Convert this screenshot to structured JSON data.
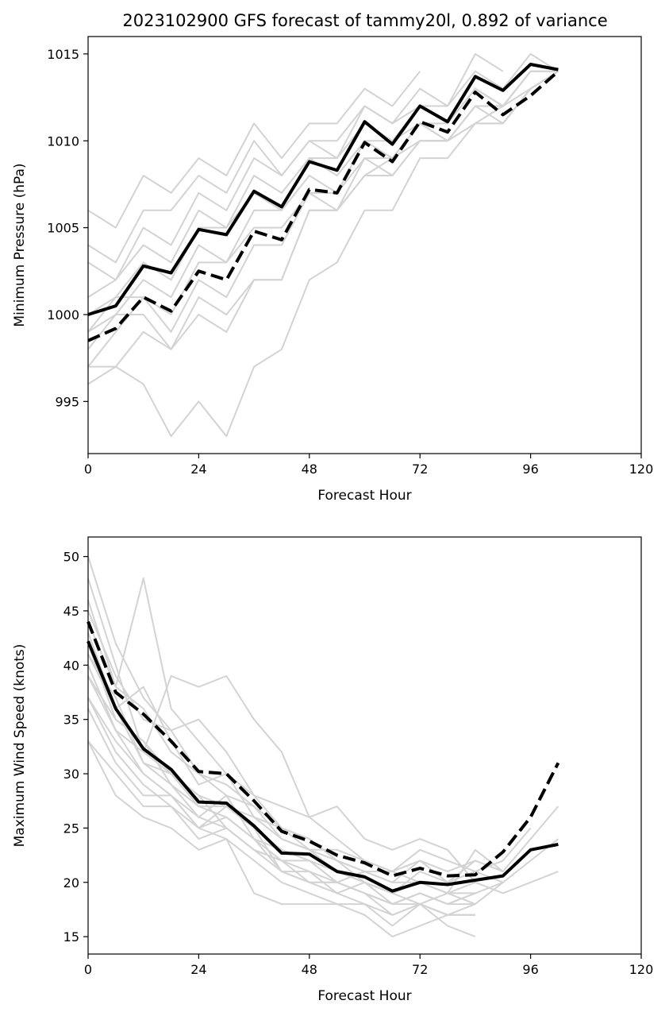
{
  "title": "2023102900 GFS forecast of tammy20l, 0.892 of variance",
  "chart_data": [
    {
      "type": "line",
      "xlabel": "Forecast Hour",
      "ylabel": "Minimum Pressure (hPa)",
      "xlim": [
        0,
        120
      ],
      "ylim": [
        992,
        1016
      ],
      "xticks": [
        0,
        24,
        48,
        72,
        96,
        120
      ],
      "yticks": [
        995,
        1000,
        1005,
        1010,
        1015
      ],
      "x": [
        0,
        6,
        12,
        18,
        24,
        30,
        36,
        42,
        48,
        54,
        60,
        66,
        72,
        78,
        84,
        90,
        96,
        102
      ],
      "series": [
        {
          "role": "mean",
          "style": "solid",
          "color": "#000000",
          "values": [
            1000.0,
            1000.5,
            1002.8,
            1002.4,
            1004.9,
            1004.6,
            1007.1,
            1006.2,
            1008.8,
            1008.3,
            1011.1,
            1009.8,
            1012.0,
            1011.1,
            1013.7,
            1012.9,
            1014.4,
            1014.1
          ]
        },
        {
          "role": "deterministic",
          "style": "dashed",
          "color": "#000000",
          "values": [
            998.5,
            999.2,
            1001.0,
            1000.2,
            1002.5,
            1002.0,
            1004.8,
            1004.3,
            1007.2,
            1007.0,
            1009.9,
            1008.8,
            1011.1,
            1010.5,
            1012.8,
            1011.5,
            1012.6,
            1014.0
          ]
        },
        {
          "role": "member",
          "values": [
            1006,
            1005,
            1008,
            1007,
            1009,
            1008,
            1011,
            1009,
            1011,
            1011,
            1013,
            1012,
            1014,
            null,
            null,
            null,
            null,
            null
          ]
        },
        {
          "role": "member",
          "values": [
            1004,
            1003,
            1006,
            1006,
            1008,
            1007,
            1010,
            1008,
            1010,
            1010,
            1012,
            1011,
            1013,
            1012,
            1015,
            1014,
            null,
            null
          ]
        },
        {
          "role": "member",
          "values": [
            1003,
            1002,
            1005,
            1004,
            1007,
            1006,
            1009,
            1008,
            1010,
            1009,
            1012,
            1011,
            1012,
            1012,
            1014,
            1013,
            1015,
            1014
          ]
        },
        {
          "role": "member",
          "values": [
            1001,
            1002,
            1004,
            1003,
            1006,
            1005,
            1008,
            1007,
            1009,
            1009,
            1011,
            1010,
            1012,
            1011,
            1013,
            1012,
            1014,
            null
          ]
        },
        {
          "role": "member",
          "values": [
            1000,
            1001,
            1003,
            1002,
            1005,
            1005,
            1007,
            1006,
            1009,
            1008,
            1010,
            1010,
            1011,
            1011,
            1013,
            1012,
            1014,
            1014
          ]
        },
        {
          "role": "member",
          "values": [
            999,
            1000,
            1002,
            1001,
            1004,
            1003,
            1006,
            1006,
            1008,
            1007,
            1010,
            1009,
            1011,
            1010,
            1012,
            1012,
            1013,
            null
          ]
        },
        {
          "role": "member",
          "values": [
            999,
            1001,
            1001,
            1000,
            1003,
            1003,
            1005,
            1005,
            1007,
            1007,
            1009,
            1009,
            1010,
            1010,
            1012,
            1011,
            1013,
            1014
          ]
        },
        {
          "role": "member",
          "values": [
            998,
            1000,
            1000,
            998,
            1000,
            999,
            1002,
            1002,
            1006,
            1006,
            1008,
            1008,
            1010,
            1010,
            1011,
            1011,
            1013,
            1014
          ]
        },
        {
          "role": "member",
          "values": [
            997,
            997,
            996,
            993,
            995,
            993,
            997,
            998,
            1002,
            1003,
            1006,
            1006,
            1009,
            1009,
            1011,
            1011,
            1013,
            null
          ]
        },
        {
          "role": "member",
          "values": [
            997,
            999,
            1001,
            999,
            1002,
            1001,
            1004,
            1004,
            1007,
            1006,
            1008,
            1009,
            1011,
            1010,
            1012,
            1012,
            1014,
            1014
          ]
        },
        {
          "role": "member",
          "values": [
            996,
            997,
            999,
            998,
            1001,
            1000,
            1002,
            1002,
            1006,
            1006,
            1009,
            1008,
            1010,
            1010,
            1011,
            1012,
            null,
            null
          ]
        }
      ]
    },
    {
      "type": "line",
      "xlabel": "Forecast Hour",
      "ylabel": "Maximum Wind Speed (knots)",
      "xlim": [
        0,
        120
      ],
      "ylim": [
        13.4,
        51.8
      ],
      "xticks": [
        0,
        24,
        48,
        72,
        96,
        120
      ],
      "yticks": [
        15,
        20,
        25,
        30,
        35,
        40,
        45,
        50
      ],
      "x": [
        0,
        6,
        12,
        18,
        24,
        30,
        36,
        42,
        48,
        54,
        60,
        66,
        72,
        78,
        84,
        90,
        96,
        102
      ],
      "series": [
        {
          "role": "mean",
          "style": "solid",
          "color": "#000000",
          "values": [
            42.2,
            36.0,
            32.3,
            30.4,
            27.4,
            27.3,
            25.2,
            22.7,
            22.6,
            21.0,
            20.5,
            19.2,
            20.0,
            19.8,
            20.2,
            20.6,
            23.0,
            23.5
          ]
        },
        {
          "role": "deterministic",
          "style": "dashed",
          "color": "#000000",
          "values": [
            44.0,
            37.5,
            35.5,
            33.0,
            30.2,
            30.0,
            27.5,
            24.7,
            23.8,
            22.5,
            21.8,
            20.6,
            21.3,
            20.6,
            20.7,
            22.8,
            26.0,
            31.0
          ]
        },
        {
          "role": "member",
          "values": [
            50,
            42,
            37,
            34,
            30,
            29,
            27,
            25,
            24,
            22,
            21,
            21,
            22,
            21,
            22,
            21,
            24,
            27
          ]
        },
        {
          "role": "member",
          "values": [
            48,
            40,
            32,
            39,
            38,
            39,
            35,
            32,
            26,
            24,
            22,
            21,
            23,
            22,
            21,
            20,
            22,
            24
          ]
        },
        {
          "role": "member",
          "values": [
            46,
            38,
            48,
            36,
            33,
            30,
            28,
            25,
            23,
            22,
            20,
            19,
            21,
            20,
            22,
            21,
            null,
            null
          ]
        },
        {
          "role": "member",
          "values": [
            45,
            39,
            35,
            34,
            35,
            32,
            28,
            27,
            26,
            27,
            24,
            23,
            24,
            23,
            20,
            19,
            20,
            21
          ]
        },
        {
          "role": "member",
          "values": [
            44,
            38,
            36,
            32,
            30,
            28,
            27,
            24,
            23,
            23,
            22,
            21,
            20,
            19,
            19,
            20,
            null,
            null
          ]
        },
        {
          "role": "member",
          "values": [
            43,
            36,
            38,
            33,
            29,
            30,
            26,
            25,
            24,
            22,
            21,
            20,
            20,
            19,
            23,
            21,
            null,
            null
          ]
        },
        {
          "role": "member",
          "values": [
            42,
            35,
            33,
            30,
            28,
            27,
            25,
            23,
            22,
            21,
            20,
            19,
            18,
            19,
            18,
            20,
            null,
            null
          ]
        },
        {
          "role": "member",
          "values": [
            41,
            37,
            31,
            29,
            27,
            26,
            24,
            22,
            21,
            20,
            19,
            18,
            19,
            18,
            19,
            null,
            null,
            null
          ]
        },
        {
          "role": "member",
          "values": [
            40,
            34,
            30,
            28,
            26,
            25,
            23,
            22,
            20,
            20,
            19,
            17,
            18,
            17,
            17,
            null,
            null,
            null
          ]
        },
        {
          "role": "member",
          "values": [
            39,
            34,
            32,
            30,
            27,
            27,
            26,
            24,
            23,
            21,
            20,
            19,
            20,
            19,
            20,
            null,
            null,
            null
          ]
        },
        {
          "role": "member",
          "values": [
            37,
            33,
            30,
            28,
            25,
            26,
            24,
            21,
            21,
            19,
            18,
            16,
            18,
            16,
            15,
            null,
            null,
            null
          ]
        },
        {
          "role": "member",
          "values": [
            37,
            32,
            29,
            27,
            24,
            25,
            23,
            22,
            22,
            20,
            19,
            18,
            19,
            18,
            18,
            null,
            null,
            null
          ]
        },
        {
          "role": "member",
          "values": [
            33,
            30,
            27,
            27,
            25,
            27,
            25,
            21,
            20,
            19,
            20,
            18,
            19,
            18,
            19,
            null,
            null,
            null
          ]
        },
        {
          "role": "member",
          "values": [
            33,
            28,
            26,
            25,
            23,
            24,
            22,
            20,
            19,
            18,
            18,
            17,
            18,
            17,
            18,
            null,
            null,
            null
          ]
        },
        {
          "role": "member",
          "values": [
            36,
            31,
            28,
            28,
            25,
            24,
            19,
            18,
            18,
            18,
            17,
            15,
            16,
            17,
            17,
            null,
            null,
            null
          ]
        },
        {
          "role": "member",
          "values": [
            39,
            35,
            33,
            29,
            26,
            28,
            24,
            23,
            22,
            20,
            21,
            20,
            22,
            20,
            21,
            22,
            25,
            null
          ]
        },
        {
          "role": "member",
          "values": [
            41,
            36,
            31,
            30,
            28,
            25,
            23,
            21,
            20,
            20,
            19,
            18,
            18,
            17,
            17,
            null,
            null,
            null
          ]
        }
      ]
    }
  ]
}
